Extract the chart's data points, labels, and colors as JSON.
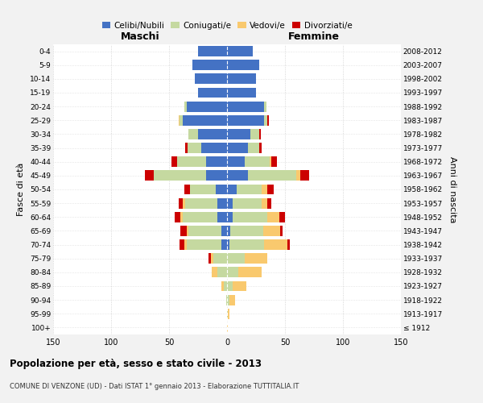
{
  "age_groups": [
    "100+",
    "95-99",
    "90-94",
    "85-89",
    "80-84",
    "75-79",
    "70-74",
    "65-69",
    "60-64",
    "55-59",
    "50-54",
    "45-49",
    "40-44",
    "35-39",
    "30-34",
    "25-29",
    "20-24",
    "15-19",
    "10-14",
    "5-9",
    "0-4"
  ],
  "birth_years": [
    "≤ 1912",
    "1913-1917",
    "1918-1922",
    "1923-1927",
    "1928-1932",
    "1933-1937",
    "1938-1942",
    "1943-1947",
    "1948-1952",
    "1953-1957",
    "1958-1962",
    "1963-1967",
    "1968-1972",
    "1973-1977",
    "1978-1982",
    "1983-1987",
    "1988-1992",
    "1993-1997",
    "1998-2002",
    "2003-2007",
    "2008-2012"
  ],
  "males_celibi": [
    0,
    0,
    0,
    0,
    0,
    0,
    5,
    5,
    8,
    8,
    10,
    18,
    18,
    22,
    25,
    38,
    35,
    25,
    28,
    30,
    25
  ],
  "males_coniugati": [
    0,
    0,
    1,
    3,
    8,
    12,
    30,
    28,
    30,
    28,
    22,
    45,
    25,
    12,
    8,
    3,
    2,
    0,
    0,
    0,
    0
  ],
  "males_vedovi": [
    0,
    0,
    0,
    2,
    5,
    2,
    2,
    2,
    2,
    2,
    0,
    0,
    0,
    0,
    0,
    1,
    0,
    0,
    0,
    0,
    0
  ],
  "males_divorziati": [
    0,
    0,
    0,
    0,
    0,
    2,
    4,
    5,
    5,
    4,
    5,
    8,
    5,
    2,
    0,
    0,
    0,
    0,
    0,
    0,
    0
  ],
  "females_celibi": [
    0,
    0,
    0,
    0,
    0,
    0,
    2,
    3,
    5,
    5,
    8,
    18,
    15,
    18,
    20,
    32,
    32,
    25,
    25,
    28,
    22
  ],
  "females_coniugati": [
    0,
    1,
    2,
    5,
    10,
    15,
    30,
    28,
    30,
    25,
    22,
    42,
    22,
    10,
    8,
    3,
    2,
    0,
    0,
    0,
    0
  ],
  "females_vedovi": [
    1,
    1,
    5,
    12,
    20,
    20,
    20,
    15,
    10,
    5,
    5,
    3,
    1,
    0,
    0,
    0,
    0,
    0,
    0,
    0,
    0
  ],
  "females_divorziati": [
    0,
    0,
    0,
    0,
    0,
    0,
    2,
    2,
    5,
    3,
    5,
    8,
    5,
    2,
    1,
    1,
    0,
    0,
    0,
    0,
    0
  ],
  "color_celibi": "#4472c4",
  "color_coniugati": "#c5d9a0",
  "color_vedovi": "#f9c96e",
  "color_divorziati": "#cc0000",
  "title": "Popolazione per età, sesso e stato civile - 2013",
  "subtitle": "COMUNE DI VENZONE (UD) - Dati ISTAT 1° gennaio 2013 - Elaborazione TUTTITALIA.IT",
  "label_maschi": "Maschi",
  "label_femmine": "Femmine",
  "ylabel_left": "Fasce di età",
  "ylabel_right": "Anni di nascita",
  "xlim": 150,
  "bg_color": "#f2f2f2",
  "plot_bg": "#ffffff",
  "grid_color": "#cccccc"
}
